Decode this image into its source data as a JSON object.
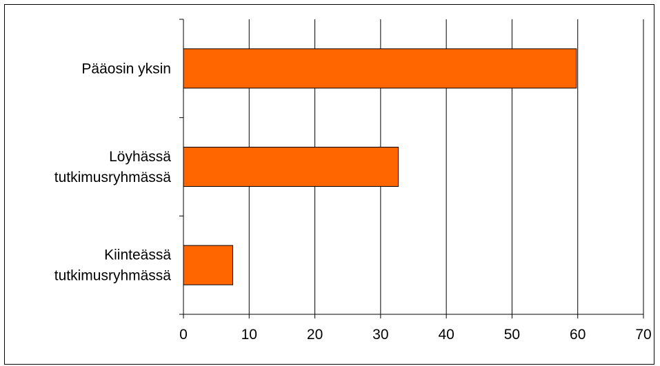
{
  "chart_data": {
    "type": "bar",
    "orientation": "horizontal",
    "categories": [
      [
        "Pääosin yksin"
      ],
      [
        "Löyhässä",
        "tutkimusryhmässä"
      ],
      [
        "Kiinteässä",
        "tutkimusryhmässä"
      ]
    ],
    "values": [
      59.8,
      32.7,
      7.5
    ],
    "xlim": [
      0,
      70
    ],
    "xticks": [
      0,
      10,
      20,
      30,
      40,
      50,
      60,
      70
    ],
    "grid": "vertical",
    "legend": "none",
    "bar_color": "#FF6600",
    "bar_border_color": "#000000",
    "title": "",
    "xlabel": "",
    "ylabel": ""
  }
}
